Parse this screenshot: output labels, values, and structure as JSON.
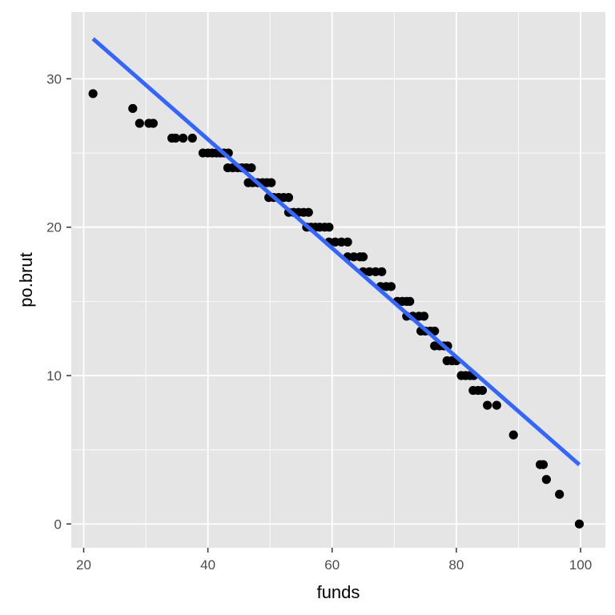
{
  "chart_data": {
    "type": "scatter",
    "title": "",
    "xlabel": "funds",
    "ylabel": "po.brut",
    "xlim": [
      18.0,
      104.0
    ],
    "ylim": [
      -1.6,
      34.5
    ],
    "x_ticks": [
      20,
      40,
      60,
      80,
      100
    ],
    "y_ticks": [
      0,
      10,
      20,
      30
    ],
    "x_tick_labels": [
      "20",
      "40",
      "60",
      "80",
      "100"
    ],
    "y_tick_labels": [
      "0",
      "10",
      "20",
      "30"
    ],
    "grid": true,
    "legend": "none",
    "points": [
      [
        21.5,
        29
      ],
      [
        27.9,
        28
      ],
      [
        29.0,
        27
      ],
      [
        30.5,
        27
      ],
      [
        31.2,
        27
      ],
      [
        34.2,
        26
      ],
      [
        34.8,
        26
      ],
      [
        36.0,
        26
      ],
      [
        37.5,
        26
      ],
      [
        39.2,
        25
      ],
      [
        40.0,
        25
      ],
      [
        40.7,
        25
      ],
      [
        41.4,
        25
      ],
      [
        42.0,
        25
      ],
      [
        42.6,
        25
      ],
      [
        43.3,
        25
      ],
      [
        43.2,
        24
      ],
      [
        44.0,
        24
      ],
      [
        44.8,
        24
      ],
      [
        45.5,
        24
      ],
      [
        46.2,
        24
      ],
      [
        47.0,
        24
      ],
      [
        46.5,
        23
      ],
      [
        47.2,
        23
      ],
      [
        48.0,
        23
      ],
      [
        48.8,
        23
      ],
      [
        49.5,
        23
      ],
      [
        50.2,
        23
      ],
      [
        49.8,
        22
      ],
      [
        50.6,
        22
      ],
      [
        51.4,
        22
      ],
      [
        52.2,
        22
      ],
      [
        53.0,
        22
      ],
      [
        53.0,
        21
      ],
      [
        53.8,
        21
      ],
      [
        54.6,
        21
      ],
      [
        55.4,
        21
      ],
      [
        56.2,
        21
      ],
      [
        55.9,
        20
      ],
      [
        56.6,
        20
      ],
      [
        57.3,
        20
      ],
      [
        58.0,
        20
      ],
      [
        58.8,
        20
      ],
      [
        59.5,
        20
      ],
      [
        59.5,
        19
      ],
      [
        60.5,
        19
      ],
      [
        61.5,
        19
      ],
      [
        62.5,
        19
      ],
      [
        62.5,
        18
      ],
      [
        63.5,
        18
      ],
      [
        64.5,
        18
      ],
      [
        65.0,
        18
      ],
      [
        65.0,
        17
      ],
      [
        66.0,
        17
      ],
      [
        67.0,
        17
      ],
      [
        68.0,
        17
      ],
      [
        67.8,
        16
      ],
      [
        68.7,
        16
      ],
      [
        69.5,
        16
      ],
      [
        70.5,
        15
      ],
      [
        71.3,
        15
      ],
      [
        72.0,
        15
      ],
      [
        72.5,
        15
      ],
      [
        72.0,
        14
      ],
      [
        73.0,
        14
      ],
      [
        74.0,
        14
      ],
      [
        74.8,
        14
      ],
      [
        74.3,
        13
      ],
      [
        75.0,
        13
      ],
      [
        75.8,
        13
      ],
      [
        76.5,
        13
      ],
      [
        76.5,
        12
      ],
      [
        77.3,
        12
      ],
      [
        78.0,
        12
      ],
      [
        78.6,
        12
      ],
      [
        78.5,
        11
      ],
      [
        79.3,
        11
      ],
      [
        80.0,
        11
      ],
      [
        80.8,
        10
      ],
      [
        81.5,
        10
      ],
      [
        82.2,
        10
      ],
      [
        82.8,
        10
      ],
      [
        82.7,
        9
      ],
      [
        83.5,
        9
      ],
      [
        84.2,
        9
      ],
      [
        85.0,
        8
      ],
      [
        86.5,
        8
      ],
      [
        89.2,
        6
      ],
      [
        93.5,
        4
      ],
      [
        94.0,
        4
      ],
      [
        94.5,
        3
      ],
      [
        96.6,
        2
      ],
      [
        99.8,
        0
      ]
    ],
    "fit_line": {
      "x": [
        21.5,
        99.8
      ],
      "y": [
        32.7,
        4.0
      ],
      "color": "#3366ff"
    },
    "colors": {
      "panel_background": "#e5e5e5",
      "grid_major": "#ffffff",
      "point": "#000000"
    }
  }
}
